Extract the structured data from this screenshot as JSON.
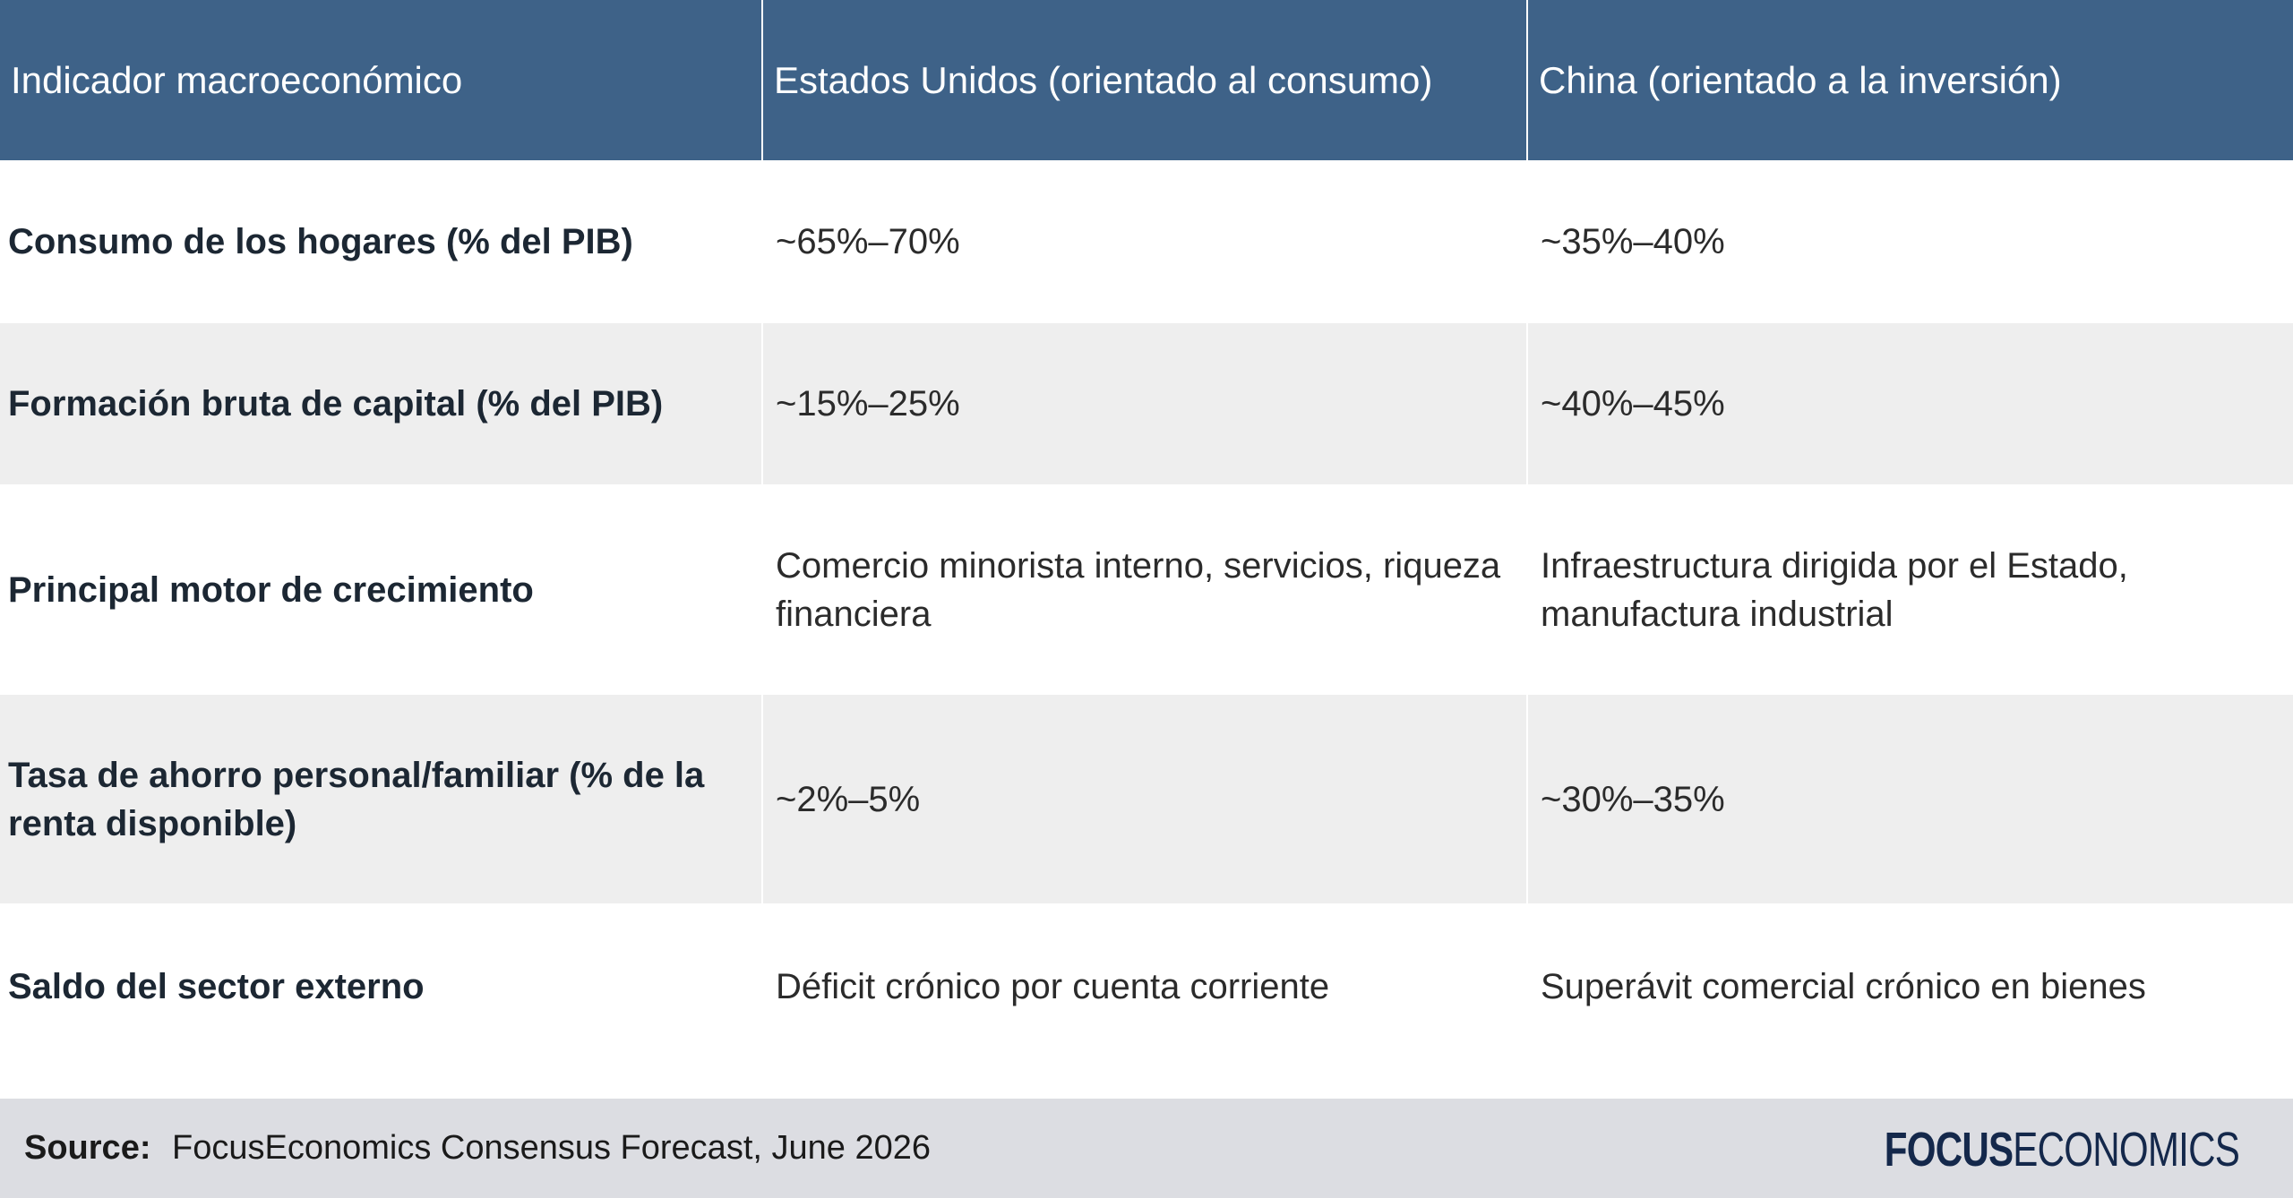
{
  "table": {
    "headers": [
      "Indicador macroeconómico",
      "Estados Unidos (orientado al consumo)",
      "China (orientado a la inversión)"
    ],
    "rows": [
      {
        "indicator": "Consumo de los hogares (% del PIB)",
        "us": "~65%–70%",
        "china": "~35%–40%"
      },
      {
        "indicator": "Formación bruta de capital (% del PIB)",
        "us": "~15%–25%",
        "china": "~40%–45%"
      },
      {
        "indicator": "Principal motor de crecimiento",
        "us": "Comercio minorista interno, servicios, riqueza financiera",
        "china": "Infraestructura dirigida por el Estado, manufactura industrial"
      },
      {
        "indicator": "Tasa de ahorro personal/familiar (% de la renta disponible)",
        "us": "~2%–5%",
        "china": "~30%–35%"
      },
      {
        "indicator": "Saldo del sector externo",
        "us": "Déficit crónico por cuenta corriente",
        "china": "Superávit comercial crónico en bienes"
      }
    ]
  },
  "footer": {
    "source_label": "Source:",
    "source_text": "FocusEconomics Consensus Forecast, June 2026",
    "logo_bold": "FOCUS",
    "logo_light": "ECONOMICS"
  },
  "colors": {
    "header_bg": "#3e6288",
    "row_alt_bg": "#eeeeee",
    "footer_bg": "#dcdde2",
    "logo": "#14284b"
  }
}
